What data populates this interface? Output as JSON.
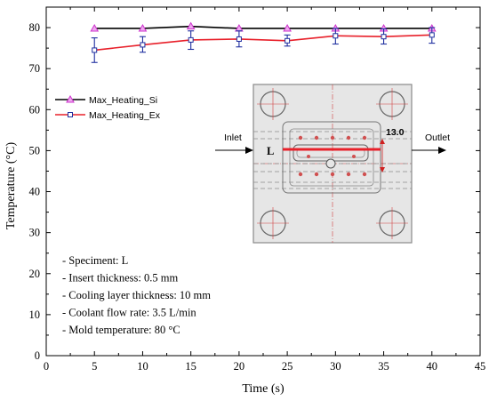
{
  "chart_data": {
    "type": "line",
    "title": "",
    "xlabel": "Time (s)",
    "ylabel": "Temperature (°C)",
    "xlim": [
      0,
      45
    ],
    "ylim": [
      0,
      85
    ],
    "xticks": [
      0,
      5,
      10,
      15,
      20,
      25,
      30,
      35,
      40,
      45
    ],
    "yticks": [
      0,
      10,
      20,
      30,
      40,
      50,
      60,
      70,
      80
    ],
    "grid": false,
    "legend_position": "upper-left",
    "x": [
      5,
      10,
      15,
      20,
      25,
      30,
      35,
      40
    ],
    "series": [
      {
        "name": "Max_Heating_Si",
        "color": "#000000",
        "marker": "triangle",
        "marker_color": "#cc33cc",
        "values": [
          79.8,
          79.8,
          80.3,
          79.8,
          79.8,
          79.8,
          79.8,
          79.8
        ]
      },
      {
        "name": "Max_Heating_Ex",
        "color": "#e8202a",
        "marker": "square",
        "marker_color": "#1f2fa0",
        "values": [
          74.5,
          75.8,
          77.0,
          77.2,
          76.8,
          78.0,
          77.8,
          78.2
        ],
        "error_low": [
          71.5,
          74.0,
          74.7,
          75.3,
          75.5,
          76.0,
          76.0,
          76.2
        ],
        "error_high": [
          77.5,
          77.8,
          79.2,
          79.2,
          78.2,
          79.8,
          79.7,
          80.0
        ]
      }
    ],
    "annotations": [
      "- Speciment: L",
      "- Insert thickness: 0.5 mm",
      "- Cooling layer thickness: 10  mm",
      "- Coolant flow rate: 3.5 L/min",
      "- Mold temperature: 80 °C"
    ],
    "inset": {
      "inlet_label": "Inlet",
      "outlet_label": "Outlet",
      "specimen_label": "L",
      "dimension_label": "13.0"
    }
  }
}
